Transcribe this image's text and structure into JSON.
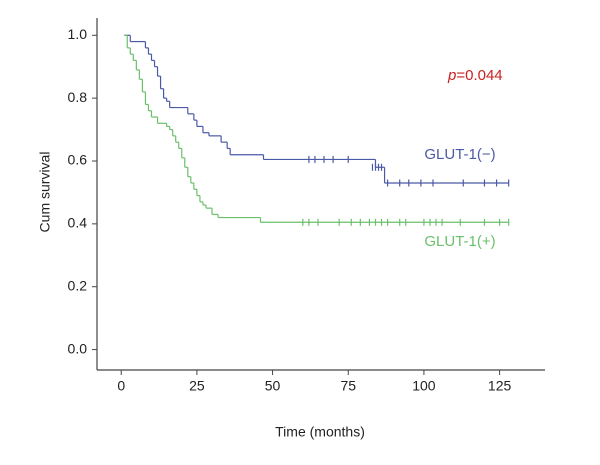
{
  "chart_data": {
    "type": "survival",
    "x_label": "Time (months)",
    "y_label": "Cum survival",
    "p_value": {
      "symbol": "p",
      "text": "=0.044",
      "color": "#cc1f1f"
    },
    "xlim": [
      -8,
      140
    ],
    "ylim": [
      -0.065,
      1.055
    ],
    "xticks": [
      0,
      25,
      50,
      75,
      100,
      125
    ],
    "yticks": [
      {
        "value": 0,
        "label": "0.0"
      },
      0.2,
      0.4,
      0.6,
      0.8,
      {
        "value": 1,
        "label": "1.0"
      }
    ],
    "grid": false,
    "series": [
      {
        "name": "GLUT-1(−)",
        "color": "#4b5aa6",
        "x": [
          1,
          3,
          8,
          9,
          10,
          11,
          12,
          13,
          14,
          15,
          16,
          22,
          24,
          25,
          27,
          29,
          33,
          35,
          36,
          47,
          84,
          87,
          128
        ],
        "values": [
          1.0,
          0.98,
          0.96,
          0.94,
          0.92,
          0.9,
          0.87,
          0.83,
          0.8,
          0.79,
          0.77,
          0.75,
          0.73,
          0.71,
          0.69,
          0.68,
          0.66,
          0.64,
          0.62,
          0.605,
          0.58,
          0.53,
          0.53
        ],
        "censored_x": [
          62,
          64,
          67,
          70,
          75,
          83,
          84,
          85,
          86,
          88,
          92,
          95,
          99,
          103,
          113,
          120,
          124,
          128
        ],
        "censored_values": [
          0.605,
          0.605,
          0.605,
          0.605,
          0.605,
          0.58,
          0.58,
          0.58,
          0.58,
          0.53,
          0.53,
          0.53,
          0.53,
          0.53,
          0.53,
          0.53,
          0.53,
          0.53
        ]
      },
      {
        "name": "GLUT-1(+)",
        "color": "#6cbf6c",
        "x": [
          1,
          2,
          3,
          4,
          5,
          6,
          7,
          8,
          9,
          10,
          12,
          15,
          16,
          17,
          18,
          19,
          20,
          21,
          22,
          23,
          24,
          25,
          26,
          27,
          28,
          30,
          32,
          46,
          128
        ],
        "values": [
          1.0,
          0.96,
          0.94,
          0.92,
          0.89,
          0.86,
          0.82,
          0.78,
          0.76,
          0.74,
          0.72,
          0.71,
          0.7,
          0.68,
          0.66,
          0.64,
          0.61,
          0.58,
          0.55,
          0.53,
          0.51,
          0.49,
          0.47,
          0.46,
          0.45,
          0.43,
          0.42,
          0.405,
          0.405
        ],
        "censored_x": [
          60,
          62,
          65,
          72,
          76,
          79,
          82,
          84,
          86,
          88,
          92,
          94,
          100,
          102,
          104,
          106,
          112,
          120,
          125,
          128
        ],
        "censored_values": [
          0.405,
          0.405,
          0.405,
          0.405,
          0.405,
          0.405,
          0.405,
          0.405,
          0.405,
          0.405,
          0.405,
          0.405,
          0.405,
          0.405,
          0.405,
          0.405,
          0.405,
          0.405,
          0.405,
          0.405
        ]
      }
    ]
  }
}
